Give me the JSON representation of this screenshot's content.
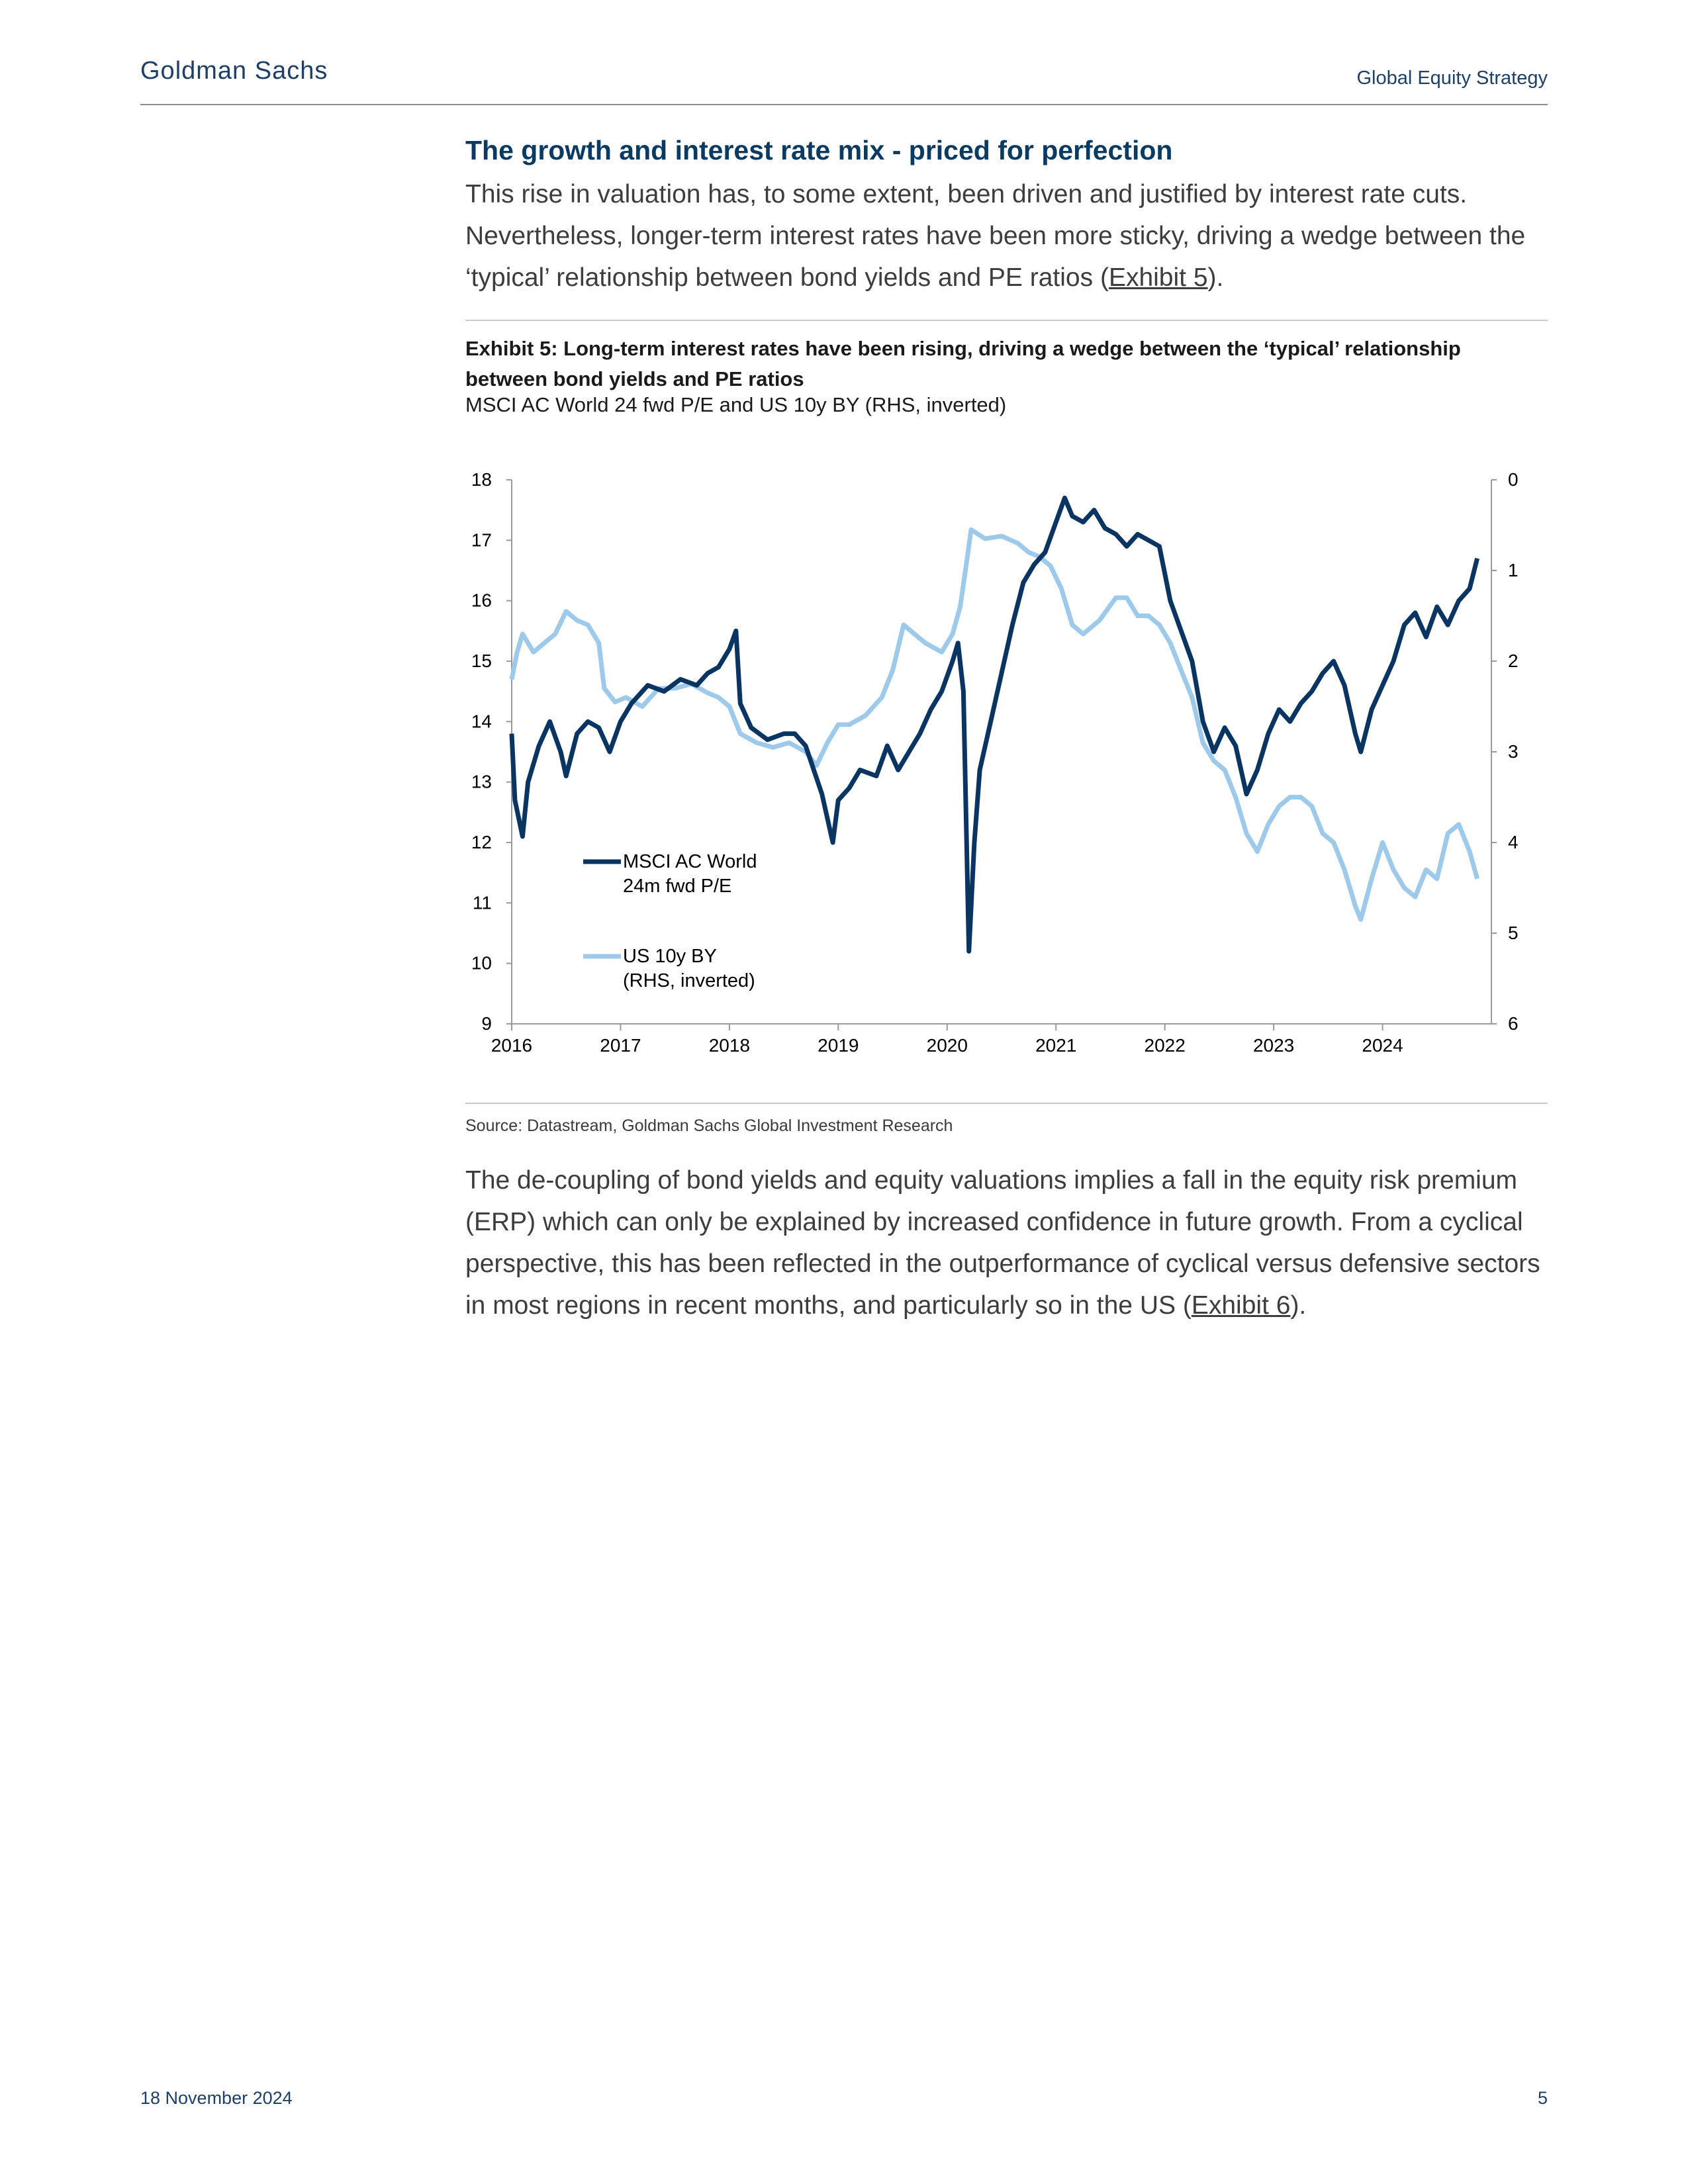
{
  "header": {
    "brand": "Goldman Sachs",
    "report_name": "Global Equity Strategy"
  },
  "section": {
    "title": "The growth and interest rate mix - priced for perfection",
    "para1_before": "This rise in valuation has, to some extent, been driven and justified by interest rate cuts. Nevertheless, longer-term interest rates have been more sticky, driving a wedge between the ‘typical’ relationship between bond yields and PE ratios (",
    "para1_link": "Exhibit 5",
    "para1_after": ")."
  },
  "exhibit": {
    "title": "Exhibit 5: Long-term interest rates have been rising, driving a wedge between the ‘typical’ relationship between bond yields and PE ratios",
    "subtitle": "MSCI AC World 24 fwd P/E and US 10y BY (RHS, inverted)",
    "source": "Source: Datastream, Goldman Sachs Global Investment Research"
  },
  "chart_data": {
    "type": "line",
    "x_ticks": [
      "2016",
      "2017",
      "2018",
      "2019",
      "2020",
      "2021",
      "2022",
      "2023",
      "2024"
    ],
    "y_left": {
      "range": [
        9,
        18
      ],
      "ticks": [
        "18",
        "17",
        "16",
        "15",
        "14",
        "13",
        "12",
        "11",
        "10",
        "9"
      ]
    },
    "y_right": {
      "range": [
        0,
        6
      ],
      "inverted": true,
      "ticks": [
        "0",
        "1",
        "2",
        "3",
        "4",
        "5",
        "6"
      ]
    },
    "legend_placement": "bottom-left",
    "grid": false,
    "series": [
      {
        "name": "MSCI AC World 24m fwd P/E",
        "legend_line1": "MSCI AC World",
        "legend_line2": "24m fwd P/E",
        "axis": "left",
        "color": "#0a3461",
        "points": [
          [
            2016.0,
            13.8
          ],
          [
            2016.03,
            12.7
          ],
          [
            2016.1,
            12.1
          ],
          [
            2016.15,
            13.0
          ],
          [
            2016.25,
            13.6
          ],
          [
            2016.35,
            14.0
          ],
          [
            2016.45,
            13.5
          ],
          [
            2016.5,
            13.1
          ],
          [
            2016.6,
            13.8
          ],
          [
            2016.7,
            14.0
          ],
          [
            2016.8,
            13.9
          ],
          [
            2016.9,
            13.5
          ],
          [
            2017.0,
            14.0
          ],
          [
            2017.1,
            14.3
          ],
          [
            2017.25,
            14.6
          ],
          [
            2017.4,
            14.5
          ],
          [
            2017.55,
            14.7
          ],
          [
            2017.7,
            14.6
          ],
          [
            2017.8,
            14.8
          ],
          [
            2017.9,
            14.9
          ],
          [
            2018.0,
            15.2
          ],
          [
            2018.06,
            15.5
          ],
          [
            2018.1,
            14.3
          ],
          [
            2018.2,
            13.9
          ],
          [
            2018.35,
            13.7
          ],
          [
            2018.5,
            13.8
          ],
          [
            2018.6,
            13.8
          ],
          [
            2018.7,
            13.6
          ],
          [
            2018.85,
            12.8
          ],
          [
            2018.95,
            12.0
          ],
          [
            2019.0,
            12.7
          ],
          [
            2019.1,
            12.9
          ],
          [
            2019.2,
            13.2
          ],
          [
            2019.35,
            13.1
          ],
          [
            2019.45,
            13.6
          ],
          [
            2019.55,
            13.2
          ],
          [
            2019.65,
            13.5
          ],
          [
            2019.75,
            13.8
          ],
          [
            2019.85,
            14.2
          ],
          [
            2019.95,
            14.5
          ],
          [
            2020.05,
            15.0
          ],
          [
            2020.1,
            15.3
          ],
          [
            2020.15,
            14.5
          ],
          [
            2020.2,
            10.2
          ],
          [
            2020.25,
            12.0
          ],
          [
            2020.3,
            13.2
          ],
          [
            2020.4,
            14.0
          ],
          [
            2020.5,
            14.8
          ],
          [
            2020.6,
            15.6
          ],
          [
            2020.7,
            16.3
          ],
          [
            2020.8,
            16.6
          ],
          [
            2020.9,
            16.8
          ],
          [
            2021.0,
            17.3
          ],
          [
            2021.08,
            17.7
          ],
          [
            2021.15,
            17.4
          ],
          [
            2021.25,
            17.3
          ],
          [
            2021.35,
            17.5
          ],
          [
            2021.45,
            17.2
          ],
          [
            2021.55,
            17.1
          ],
          [
            2021.65,
            16.9
          ],
          [
            2021.75,
            17.1
          ],
          [
            2021.85,
            17.0
          ],
          [
            2021.95,
            16.9
          ],
          [
            2022.05,
            16.0
          ],
          [
            2022.15,
            15.5
          ],
          [
            2022.25,
            15.0
          ],
          [
            2022.35,
            14.0
          ],
          [
            2022.45,
            13.5
          ],
          [
            2022.55,
            13.9
          ],
          [
            2022.65,
            13.6
          ],
          [
            2022.75,
            12.8
          ],
          [
            2022.85,
            13.2
          ],
          [
            2022.95,
            13.8
          ],
          [
            2023.05,
            14.2
          ],
          [
            2023.15,
            14.0
          ],
          [
            2023.25,
            14.3
          ],
          [
            2023.35,
            14.5
          ],
          [
            2023.45,
            14.8
          ],
          [
            2023.55,
            15.0
          ],
          [
            2023.65,
            14.6
          ],
          [
            2023.75,
            13.8
          ],
          [
            2023.8,
            13.5
          ],
          [
            2023.9,
            14.2
          ],
          [
            2024.0,
            14.6
          ],
          [
            2024.1,
            15.0
          ],
          [
            2024.2,
            15.6
          ],
          [
            2024.3,
            15.8
          ],
          [
            2024.4,
            15.4
          ],
          [
            2024.5,
            15.9
          ],
          [
            2024.6,
            15.6
          ],
          [
            2024.7,
            16.0
          ],
          [
            2024.8,
            16.2
          ],
          [
            2024.87,
            16.7
          ]
        ]
      },
      {
        "name": "US 10y BY (RHS, inverted)",
        "legend_line1": "US 10y BY",
        "legend_line2": "(RHS, inverted)",
        "axis": "right",
        "color": "#9dc9ea",
        "points": [
          [
            2016.0,
            2.2
          ],
          [
            2016.05,
            1.9
          ],
          [
            2016.1,
            1.7
          ],
          [
            2016.2,
            1.9
          ],
          [
            2016.3,
            1.8
          ],
          [
            2016.4,
            1.7
          ],
          [
            2016.5,
            1.45
          ],
          [
            2016.6,
            1.55
          ],
          [
            2016.7,
            1.6
          ],
          [
            2016.8,
            1.8
          ],
          [
            2016.85,
            2.3
          ],
          [
            2016.95,
            2.45
          ],
          [
            2017.05,
            2.4
          ],
          [
            2017.2,
            2.5
          ],
          [
            2017.35,
            2.3
          ],
          [
            2017.5,
            2.3
          ],
          [
            2017.65,
            2.25
          ],
          [
            2017.8,
            2.35
          ],
          [
            2017.9,
            2.4
          ],
          [
            2018.0,
            2.5
          ],
          [
            2018.1,
            2.8
          ],
          [
            2018.25,
            2.9
          ],
          [
            2018.4,
            2.95
          ],
          [
            2018.55,
            2.9
          ],
          [
            2018.7,
            3.0
          ],
          [
            2018.8,
            3.15
          ],
          [
            2018.9,
            2.9
          ],
          [
            2019.0,
            2.7
          ],
          [
            2019.1,
            2.7
          ],
          [
            2019.25,
            2.6
          ],
          [
            2019.4,
            2.4
          ],
          [
            2019.5,
            2.1
          ],
          [
            2019.6,
            1.6
          ],
          [
            2019.7,
            1.7
          ],
          [
            2019.8,
            1.8
          ],
          [
            2019.95,
            1.9
          ],
          [
            2020.05,
            1.7
          ],
          [
            2020.12,
            1.4
          ],
          [
            2020.18,
            0.9
          ],
          [
            2020.22,
            0.55
          ],
          [
            2020.35,
            0.65
          ],
          [
            2020.5,
            0.62
          ],
          [
            2020.65,
            0.7
          ],
          [
            2020.75,
            0.8
          ],
          [
            2020.85,
            0.85
          ],
          [
            2020.95,
            0.95
          ],
          [
            2021.05,
            1.2
          ],
          [
            2021.15,
            1.6
          ],
          [
            2021.25,
            1.7
          ],
          [
            2021.4,
            1.55
          ],
          [
            2021.55,
            1.3
          ],
          [
            2021.65,
            1.3
          ],
          [
            2021.75,
            1.5
          ],
          [
            2021.85,
            1.5
          ],
          [
            2021.95,
            1.6
          ],
          [
            2022.05,
            1.8
          ],
          [
            2022.15,
            2.1
          ],
          [
            2022.25,
            2.4
          ],
          [
            2022.35,
            2.9
          ],
          [
            2022.45,
            3.1
          ],
          [
            2022.55,
            3.2
          ],
          [
            2022.65,
            3.5
          ],
          [
            2022.75,
            3.9
          ],
          [
            2022.85,
            4.1
          ],
          [
            2022.95,
            3.8
          ],
          [
            2023.05,
            3.6
          ],
          [
            2023.15,
            3.5
          ],
          [
            2023.25,
            3.5
          ],
          [
            2023.35,
            3.6
          ],
          [
            2023.45,
            3.9
          ],
          [
            2023.55,
            4.0
          ],
          [
            2023.65,
            4.3
          ],
          [
            2023.75,
            4.7
          ],
          [
            2023.8,
            4.85
          ],
          [
            2023.9,
            4.4
          ],
          [
            2024.0,
            4.0
          ],
          [
            2024.1,
            4.3
          ],
          [
            2024.2,
            4.5
          ],
          [
            2024.3,
            4.6
          ],
          [
            2024.4,
            4.3
          ],
          [
            2024.5,
            4.4
          ],
          [
            2024.6,
            3.9
          ],
          [
            2024.7,
            3.8
          ],
          [
            2024.8,
            4.1
          ],
          [
            2024.87,
            4.4
          ]
        ]
      }
    ]
  },
  "closing": {
    "para2_before": "The de-coupling of bond yields and equity valuations implies a fall in the equity risk premium (ERP) which can only be explained by increased confidence in future growth. From a cyclical perspective, this has been reflected in the outperformance of cyclical versus defensive sectors in most regions in recent months, and particularly so in the US (",
    "para2_link": "Exhibit 6",
    "para2_after": ")."
  },
  "footer": {
    "date": "18 November 2024",
    "page_number": "5"
  }
}
